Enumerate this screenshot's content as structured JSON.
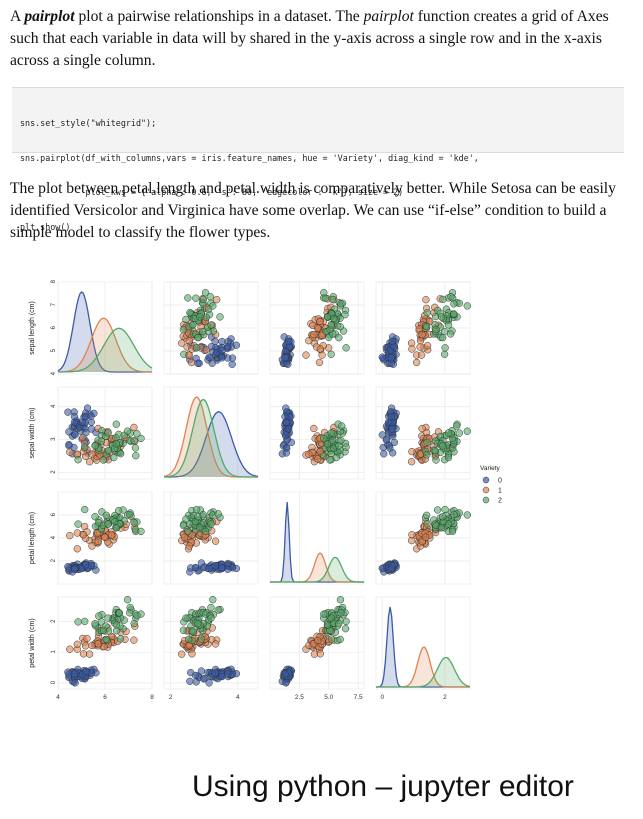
{
  "intro": {
    "em1": "pairplot",
    "t1": " plot a pairwise relationships in a dataset. The ",
    "em2": "pairplot",
    "t2": " function creates a grid of Axes such that each variable in data will by shared in the y-axis across a single row and in the x-axis across a single column."
  },
  "code": {
    "lines": [
      "sns.set_style(\"whitegrid\");",
      "sns.pairplot(df_with_columns,vars = iris.feature_names, hue = 'Variety', diag_kind = 'kde',",
      "             plot_kws = {'alpha': 0.6, 's': 80, 'edgecolor': 'k'}, size = 2)",
      "plt.show()"
    ]
  },
  "analysis": "The plot between petal.length and petal.width is comparatively better. While Setosa can be easily identified Versicolor and Virginica have some overlap. We can use “if-else” condition to build a simple model to classify the flower types.",
  "caption": "Using python – jupyter editor",
  "chart_data": {
    "type": "scatter",
    "subtype": "pairplot",
    "variables": [
      "sepal length (cm)",
      "sepal width (cm)",
      "petal length (cm)",
      "petal width (cm)"
    ],
    "ranges": [
      [
        4,
        8
      ],
      [
        1.8,
        4.6
      ],
      [
        0,
        8
      ],
      [
        -0.2,
        2.8
      ]
    ],
    "y_ticks": [
      [
        4,
        5,
        6,
        7,
        8
      ],
      [
        2,
        3,
        4
      ],
      [
        2,
        4,
        6
      ],
      [
        0,
        1,
        2
      ]
    ],
    "x_ticks": [
      [
        4,
        6,
        8
      ],
      [
        2,
        4
      ],
      [
        2.5,
        5.0,
        7.5
      ],
      [
        0,
        2
      ]
    ],
    "x_tick_labels": [
      [
        "4",
        "6",
        "8"
      ],
      [
        "2",
        "4"
      ],
      [
        "2.5",
        "5.0",
        "7.5"
      ],
      [
        "0",
        "2"
      ]
    ],
    "legend": {
      "title": "Variety",
      "entries": [
        "0",
        "1",
        "2"
      ],
      "placement": "right"
    },
    "colors": [
      "#3b5ba9",
      "#dd8452",
      "#55a868"
    ],
    "grid": true,
    "diag_kind": "kde",
    "series": [
      {
        "name": "0",
        "mean": [
          5.01,
          3.43,
          1.46,
          0.25
        ],
        "sd": [
          0.35,
          0.38,
          0.17,
          0.1
        ]
      },
      {
        "name": "1",
        "mean": [
          5.94,
          2.77,
          4.26,
          1.33
        ],
        "sd": [
          0.52,
          0.31,
          0.47,
          0.2
        ]
      },
      {
        "name": "2",
        "mean": [
          6.59,
          2.97,
          5.55,
          2.03
        ],
        "sd": [
          0.64,
          0.32,
          0.55,
          0.27
        ]
      }
    ],
    "points_per_series": 45
  }
}
